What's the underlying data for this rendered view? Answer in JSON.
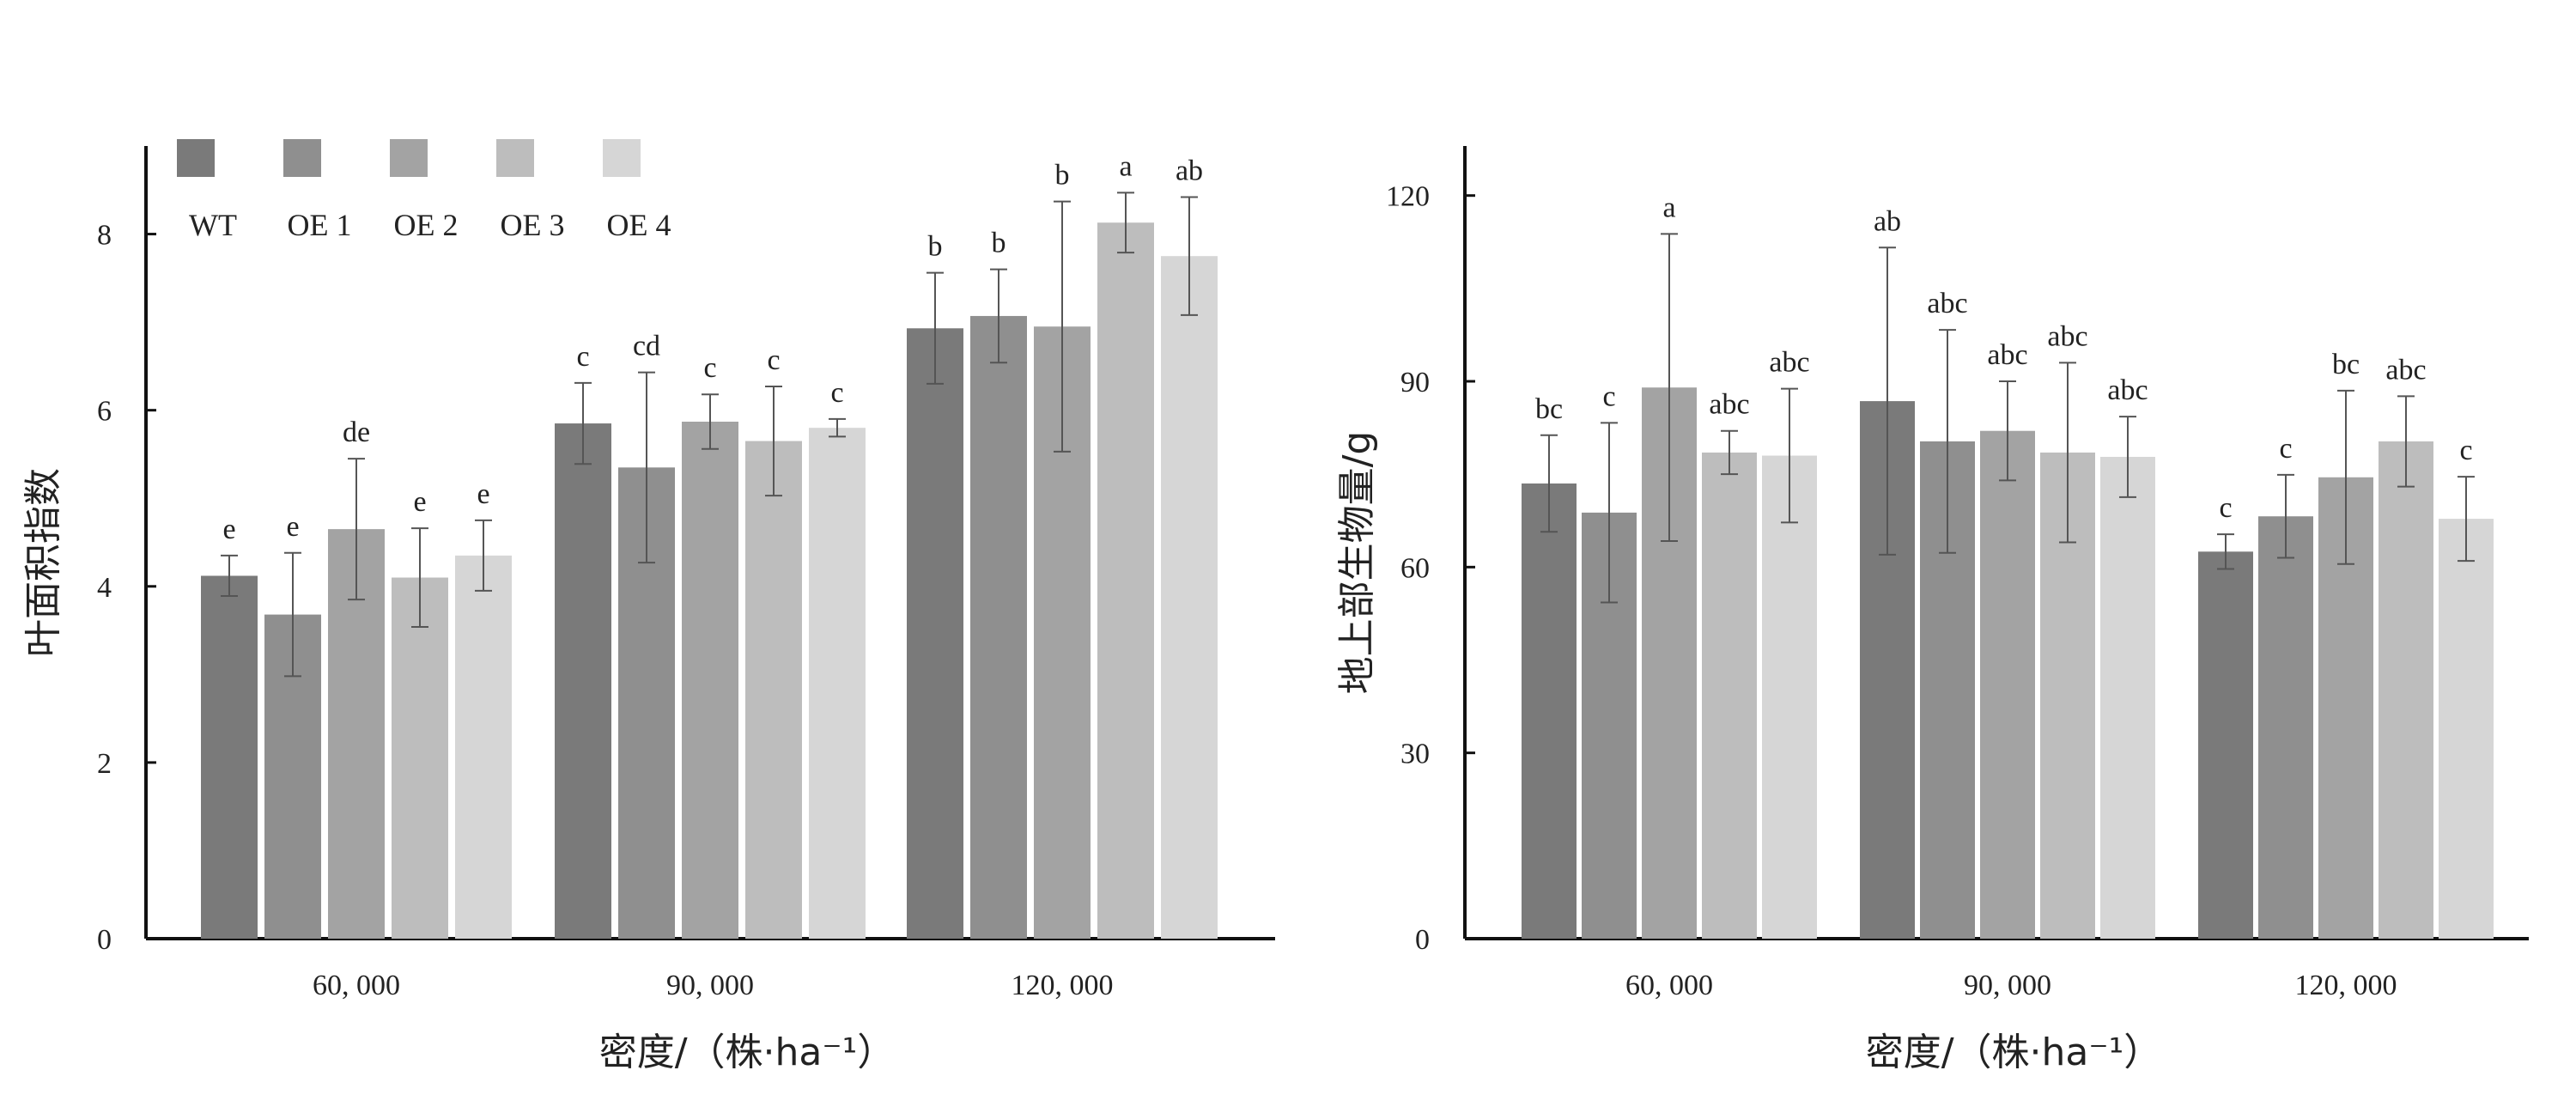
{
  "chart_data": [
    {
      "type": "bar",
      "title": "",
      "xlabel": "密度/（株·ha⁻¹）",
      "ylabel": "叶面积指数",
      "ylim": [
        0,
        9
      ],
      "yticks": [
        "0",
        "2",
        "4",
        "6",
        "8"
      ],
      "ytick_values": [
        0,
        2,
        4,
        6,
        8
      ],
      "categories": [
        "60, 000",
        "90, 000",
        "120, 000"
      ],
      "legend": {
        "placement": "top-left"
      },
      "series": [
        {
          "name": "WT",
          "color": "#7a7a7a",
          "values": [
            4.12,
            5.85,
            6.93
          ],
          "error": [
            0.23,
            0.46,
            0.63
          ],
          "letters": [
            "e",
            "c",
            "b"
          ]
        },
        {
          "name": "OE 1",
          "color": "#8f8f8f",
          "values": [
            3.68,
            5.35,
            7.07
          ],
          "error": [
            0.7,
            1.08,
            0.53
          ],
          "letters": [
            "e",
            "cd",
            "b"
          ]
        },
        {
          "name": "OE 2",
          "color": "#a3a3a3",
          "values": [
            4.65,
            5.87,
            6.95
          ],
          "error": [
            0.8,
            0.31,
            1.42
          ],
          "letters": [
            "de",
            "c",
            "b"
          ]
        },
        {
          "name": "OE 3",
          "color": "#bdbdbd",
          "values": [
            4.1,
            5.65,
            8.13
          ],
          "error": [
            0.56,
            0.62,
            0.34
          ],
          "letters": [
            "e",
            "c",
            "a"
          ]
        },
        {
          "name": "OE 4",
          "color": "#d6d6d6",
          "values": [
            4.35,
            5.8,
            7.75
          ],
          "error": [
            0.4,
            0.1,
            0.67
          ],
          "letters": [
            "e",
            "c",
            "ab"
          ]
        }
      ]
    },
    {
      "type": "bar",
      "title": "",
      "xlabel": "密度/（株·ha⁻¹）",
      "ylabel": "地上部生物量/g",
      "ylim": [
        0,
        128
      ],
      "yticks": [
        "0",
        "30",
        "60",
        "90",
        "120"
      ],
      "ytick_values": [
        0,
        30,
        60,
        90,
        120
      ],
      "categories": [
        "60, 000",
        "90, 000",
        "120, 000"
      ],
      "series": [
        {
          "name": "WT",
          "color": "#7a7a7a",
          "values": [
            73.5,
            86.8,
            62.5
          ],
          "error": [
            7.8,
            24.8,
            2.8
          ],
          "letters": [
            "bc",
            "ab",
            "c"
          ]
        },
        {
          "name": "OE 1",
          "color": "#8f8f8f",
          "values": [
            68.8,
            80.3,
            68.2
          ],
          "error": [
            14.5,
            18.0,
            6.7
          ],
          "letters": [
            "c",
            "abc",
            "c"
          ]
        },
        {
          "name": "OE 2",
          "color": "#a3a3a3",
          "values": [
            89.0,
            82.0,
            74.5
          ],
          "error": [
            24.8,
            8.0,
            14.0
          ],
          "letters": [
            "a",
            "abc",
            "bc"
          ]
        },
        {
          "name": "OE 3",
          "color": "#bdbdbd",
          "values": [
            78.5,
            78.5,
            80.3
          ],
          "error": [
            3.5,
            14.5,
            7.3
          ],
          "letters": [
            "abc",
            "abc",
            "abc"
          ]
        },
        {
          "name": "OE 4",
          "color": "#d6d6d6",
          "values": [
            78.0,
            77.8,
            67.8
          ],
          "error": [
            10.8,
            6.5,
            6.8
          ],
          "letters": [
            "abc",
            "abc",
            "c"
          ]
        }
      ]
    }
  ]
}
